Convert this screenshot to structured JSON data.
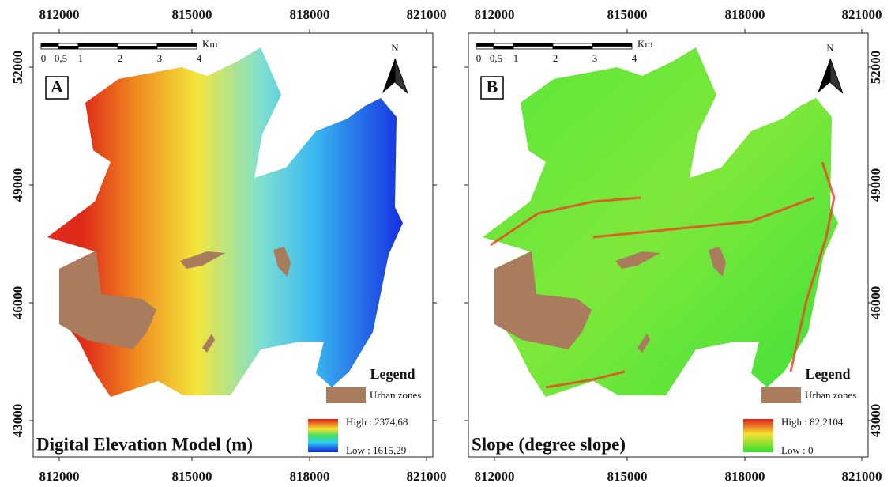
{
  "panels": [
    {
      "label": "A",
      "x_ticks": [
        "812000",
        "815000",
        "818000",
        "821000"
      ],
      "x_ticks_bottom": [
        "812000",
        "815000",
        "818000",
        "821000"
      ],
      "y_ticks": [
        "52000",
        "49000",
        "46000",
        "43000"
      ],
      "scale_bar": [
        "0",
        "0,5",
        "1",
        "2",
        "3",
        "4"
      ],
      "scale_unit": "Km",
      "north": "N",
      "legend": {
        "title": "Legend",
        "item": "Urban zones",
        "high": "High : 2374,68",
        "low": "Low : 1615,29"
      },
      "caption": "Digital Elevation Model (m)"
    },
    {
      "label": "B",
      "x_ticks": [
        "812000",
        "815000",
        "818000",
        "821000"
      ],
      "x_ticks_bottom": [
        "812000",
        "815000",
        "818000",
        "821000"
      ],
      "y_ticks": [
        "52000",
        "49000",
        "46000",
        "43000"
      ],
      "scale_bar": [
        "0",
        "0,5",
        "1",
        "2",
        "3",
        "4"
      ],
      "scale_unit": "Km",
      "north": "N",
      "legend": {
        "title": "Legend",
        "item": "Urban zones",
        "high": "High : 82,2104",
        "low": "Low : 0"
      },
      "caption": "Slope (degree slope)"
    }
  ]
}
